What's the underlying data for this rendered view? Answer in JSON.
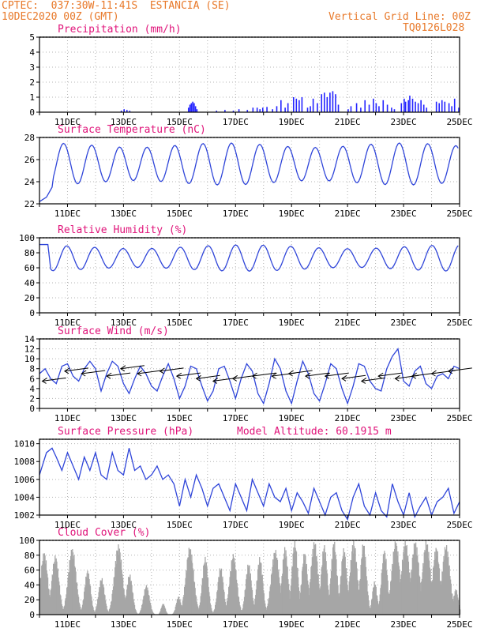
{
  "header": {
    "line1_left": "CPTEC:  037:30W-11:41S  ESTANCIA (SE)",
    "line2_left": "10DEC2020 00Z (GMT)",
    "line1_right": "Vertical Grid Line: 00Z",
    "line2_right": "TQ0126L028"
  },
  "colors": {
    "header": "#e8792a",
    "panel_title": "#e0147a",
    "line": "#2f45d9",
    "bars_precip": "#2424ff",
    "bars_cloud": "#a6a6a6",
    "grid": "#b4b4b4",
    "arrow": "#000000"
  },
  "x_axis": {
    "start_day": 10,
    "end_day": 25,
    "tick_days": [
      11,
      13,
      15,
      17,
      19,
      21,
      23,
      25
    ],
    "tick_labels": [
      "11DEC",
      "13DEC",
      "15DEC",
      "17DEC",
      "19DEC",
      "21DEC",
      "23DEC",
      "25DEC"
    ]
  },
  "chart_data": [
    {
      "type": "bar",
      "title": "Precipitation (mm/h)",
      "ylim": [
        0,
        5
      ],
      "yticks": [
        0,
        1,
        2,
        3,
        4,
        5
      ],
      "grid": true,
      "x": [
        12.9,
        13.0,
        13.1,
        13.2,
        15.3,
        15.35,
        15.4,
        15.45,
        15.5,
        15.55,
        15.6,
        16.3,
        16.6,
        16.9,
        17.1,
        17.4,
        17.6,
        17.75,
        17.85,
        17.95,
        18.1,
        18.3,
        18.45,
        18.6,
        18.75,
        18.85,
        19.05,
        19.15,
        19.25,
        19.35,
        19.55,
        19.65,
        19.75,
        19.9,
        20.05,
        20.15,
        20.25,
        20.35,
        20.45,
        20.55,
        20.65,
        21.0,
        21.1,
        21.3,
        21.45,
        21.6,
        21.75,
        21.9,
        22.0,
        22.1,
        22.25,
        22.4,
        22.55,
        22.65,
        22.9,
        23.0,
        23.05,
        23.15,
        23.2,
        23.3,
        23.4,
        23.5,
        23.6,
        23.7,
        23.8,
        24.15,
        24.25,
        24.35,
        24.45,
        24.6,
        24.7,
        24.8,
        24.95
      ],
      "values": [
        0.1,
        0.2,
        0.15,
        0.1,
        0.3,
        0.5,
        0.6,
        0.7,
        0.6,
        0.4,
        0.2,
        0.1,
        0.15,
        0.1,
        0.2,
        0.15,
        0.3,
        0.3,
        0.2,
        0.3,
        0.35,
        0.2,
        0.4,
        0.8,
        0.3,
        0.6,
        1.0,
        0.9,
        0.8,
        1.0,
        0.3,
        0.4,
        0.9,
        0.6,
        1.2,
        1.3,
        1.0,
        1.3,
        1.4,
        1.2,
        0.5,
        0.2,
        0.4,
        0.6,
        0.3,
        0.8,
        0.5,
        0.9,
        0.6,
        0.4,
        0.8,
        0.5,
        0.3,
        0.2,
        0.6,
        0.9,
        0.7,
        0.8,
        1.1,
        0.9,
        0.7,
        0.6,
        0.8,
        0.5,
        0.3,
        0.7,
        0.6,
        0.8,
        0.7,
        0.6,
        0.4,
        0.9,
        0.3
      ]
    },
    {
      "type": "line",
      "title": "Surface Temperature (nC)",
      "ylim": [
        22,
        28
      ],
      "yticks": [
        22,
        24,
        26,
        28
      ],
      "grid": true,
      "mean": 25.6,
      "amplitude": 1.7,
      "phase_day": 10.6,
      "series": [
        {
          "x": [
            10.0,
            10.25,
            10.45
          ],
          "values": [
            22.2,
            22.6,
            23.5
          ]
        }
      ]
    },
    {
      "type": "line",
      "title": "Relative Humidity (%)",
      "ylim": [
        0,
        100
      ],
      "yticks": [
        0,
        20,
        40,
        60,
        80,
        100
      ],
      "grid": true,
      "mean": 73,
      "amplitude": 15,
      "start_value": 91
    },
    {
      "type": "line",
      "title": "Surface Wind (m/s)",
      "ylim": [
        0,
        14
      ],
      "yticks": [
        0,
        2,
        4,
        6,
        8,
        10,
        12,
        14
      ],
      "grid": true,
      "series": [
        {
          "x": [
            10.0,
            10.2,
            10.4,
            10.6,
            10.8,
            11.0,
            11.2,
            11.4,
            11.6,
            11.8,
            12.0,
            12.2,
            12.4,
            12.6,
            12.8,
            13.0,
            13.2,
            13.4,
            13.6,
            13.8,
            14.0,
            14.2,
            14.4,
            14.6,
            14.8,
            15.0,
            15.2,
            15.4,
            15.6,
            15.8,
            16.0,
            16.2,
            16.4,
            16.6,
            16.8,
            17.0,
            17.2,
            17.4,
            17.6,
            17.8,
            18.0,
            18.2,
            18.4,
            18.6,
            18.8,
            19.0,
            19.2,
            19.4,
            19.6,
            19.8,
            20.0,
            20.2,
            20.4,
            20.6,
            20.8,
            21.0,
            21.2,
            21.4,
            21.6,
            21.8,
            22.0,
            22.2,
            22.4,
            22.6,
            22.8,
            23.0,
            23.2,
            23.4,
            23.6,
            23.8,
            24.0,
            24.2,
            24.4,
            24.6,
            24.8,
            25.0
          ],
          "values": [
            7.0,
            8.0,
            6.0,
            5.0,
            8.5,
            9.0,
            6.5,
            5.5,
            8.0,
            9.5,
            8.0,
            3.5,
            7.0,
            9.5,
            8.5,
            5.0,
            3.0,
            6.0,
            8.5,
            7.0,
            4.5,
            3.5,
            6.5,
            9.0,
            6.0,
            2.0,
            4.5,
            8.5,
            8.0,
            4.5,
            1.5,
            3.5,
            8.0,
            8.5,
            5.5,
            2.0,
            6.0,
            9.0,
            7.5,
            3.0,
            1.0,
            5.0,
            10.0,
            8.0,
            3.5,
            1.0,
            5.5,
            9.5,
            7.0,
            3.0,
            1.5,
            5.0,
            9.0,
            8.0,
            4.0,
            1.0,
            4.5,
            9.0,
            8.5,
            5.5,
            4.0,
            3.5,
            8.0,
            10.5,
            12.0,
            5.5,
            4.5,
            7.5,
            8.5,
            5.0,
            4.0,
            6.5,
            7.0,
            6.0,
            8.5,
            8.0
          ]
        }
      ],
      "arrows": {
        "days": [
          10.1,
          10.9,
          11.5,
          12.4,
          12.9,
          13.5,
          14.3,
          14.9,
          15.6,
          16.2,
          16.9,
          17.6,
          18.3,
          18.9,
          19.5,
          20.2,
          20.8,
          21.5,
          22.1,
          22.7,
          23.3,
          24.0,
          24.6
        ],
        "speeds": [
          5.5,
          7.5,
          7.0,
          6.5,
          8.0,
          7.0,
          7.5,
          6.5,
          6.0,
          5.5,
          6.0,
          6.5,
          6.5,
          7.0,
          6.5,
          6.5,
          6.0,
          5.5,
          6.5,
          6.0,
          6.5,
          7.0,
          7.5
        ]
      }
    },
    {
      "type": "line",
      "title": "Surface Pressure (hPa)",
      "annotation": "Model Altitude: 60.1915 m",
      "ylim": [
        1002,
        1010.5
      ],
      "yticks": [
        1002,
        1004,
        1006,
        1008,
        1010
      ],
      "grid": true,
      "series": [
        {
          "x": [
            10.0,
            10.25,
            10.45,
            10.6,
            10.8,
            11.0,
            11.2,
            11.4,
            11.6,
            11.8,
            12.0,
            12.2,
            12.4,
            12.6,
            12.8,
            13.0,
            13.2,
            13.4,
            13.6,
            13.8,
            14.0,
            14.2,
            14.4,
            14.6,
            14.8,
            15.0,
            15.2,
            15.4,
            15.6,
            15.8,
            16.0,
            16.2,
            16.4,
            16.6,
            16.8,
            17.0,
            17.2,
            17.4,
            17.6,
            17.8,
            18.0,
            18.2,
            18.4,
            18.6,
            18.8,
            19.0,
            19.2,
            19.4,
            19.6,
            19.8,
            20.0,
            20.2,
            20.4,
            20.6,
            20.8,
            21.0,
            21.2,
            21.4,
            21.6,
            21.8,
            22.0,
            22.2,
            22.4,
            22.6,
            22.8,
            23.0,
            23.2,
            23.4,
            23.6,
            23.8,
            24.0,
            24.2,
            24.4,
            24.6,
            24.8,
            25.0
          ],
          "values": [
            1006.5,
            1009.0,
            1009.5,
            1008.5,
            1007.0,
            1009.0,
            1007.5,
            1006.0,
            1008.5,
            1007.0,
            1009.0,
            1006.5,
            1006.0,
            1009.0,
            1007.0,
            1006.5,
            1009.5,
            1007.0,
            1007.5,
            1006.0,
            1006.5,
            1007.5,
            1006.0,
            1006.5,
            1005.5,
            1003.0,
            1006.0,
            1004.0,
            1006.5,
            1005.0,
            1003.0,
            1005.0,
            1005.5,
            1004.0,
            1002.5,
            1005.5,
            1004.0,
            1002.5,
            1006.0,
            1004.5,
            1003.0,
            1005.5,
            1004.0,
            1003.5,
            1005.0,
            1002.5,
            1004.5,
            1003.5,
            1002.2,
            1005.0,
            1003.5,
            1002.0,
            1004.0,
            1004.5,
            1002.5,
            1001.5,
            1004.0,
            1005.5,
            1003.0,
            1002.0,
            1004.5,
            1002.5,
            1001.8,
            1005.5,
            1003.5,
            1002.0,
            1004.5,
            1001.8,
            1003.0,
            1004.0,
            1002.0,
            1003.5,
            1004.0,
            1005.0,
            1002.2,
            1003.5
          ]
        }
      ]
    },
    {
      "type": "bar",
      "title": "Cloud Cover (%)",
      "ylim": [
        0,
        100
      ],
      "yticks": [
        0,
        20,
        40,
        60,
        80,
        100
      ],
      "grid": true,
      "peak_days": [
        10.15,
        10.55,
        11.15,
        11.7,
        12.2,
        12.8,
        13.2,
        13.8,
        14.4,
        14.95,
        15.35,
        15.9,
        16.45,
        16.9,
        17.45,
        17.85,
        18.4,
        18.75,
        19.1,
        19.45,
        19.8,
        20.15,
        20.5,
        20.85,
        21.2,
        21.55,
        21.95,
        22.3,
        22.7,
        23.05,
        23.4,
        23.8,
        24.15,
        24.5,
        24.85
      ],
      "peak_values": [
        85,
        80,
        90,
        60,
        50,
        95,
        55,
        40,
        15,
        25,
        92,
        78,
        65,
        82,
        70,
        78,
        88,
        92,
        100,
        85,
        100,
        95,
        100,
        90,
        100,
        98,
        45,
        88,
        100,
        100,
        100,
        100,
        92,
        95,
        35
      ],
      "peak_widths": [
        0.18,
        0.18,
        0.2,
        0.15,
        0.15,
        0.2,
        0.15,
        0.15,
        0.1,
        0.12,
        0.2,
        0.15,
        0.15,
        0.18,
        0.15,
        0.15,
        0.2,
        0.15,
        0.15,
        0.15,
        0.18,
        0.15,
        0.15,
        0.15,
        0.18,
        0.15,
        0.12,
        0.15,
        0.2,
        0.2,
        0.2,
        0.2,
        0.18,
        0.2,
        0.12
      ]
    }
  ]
}
